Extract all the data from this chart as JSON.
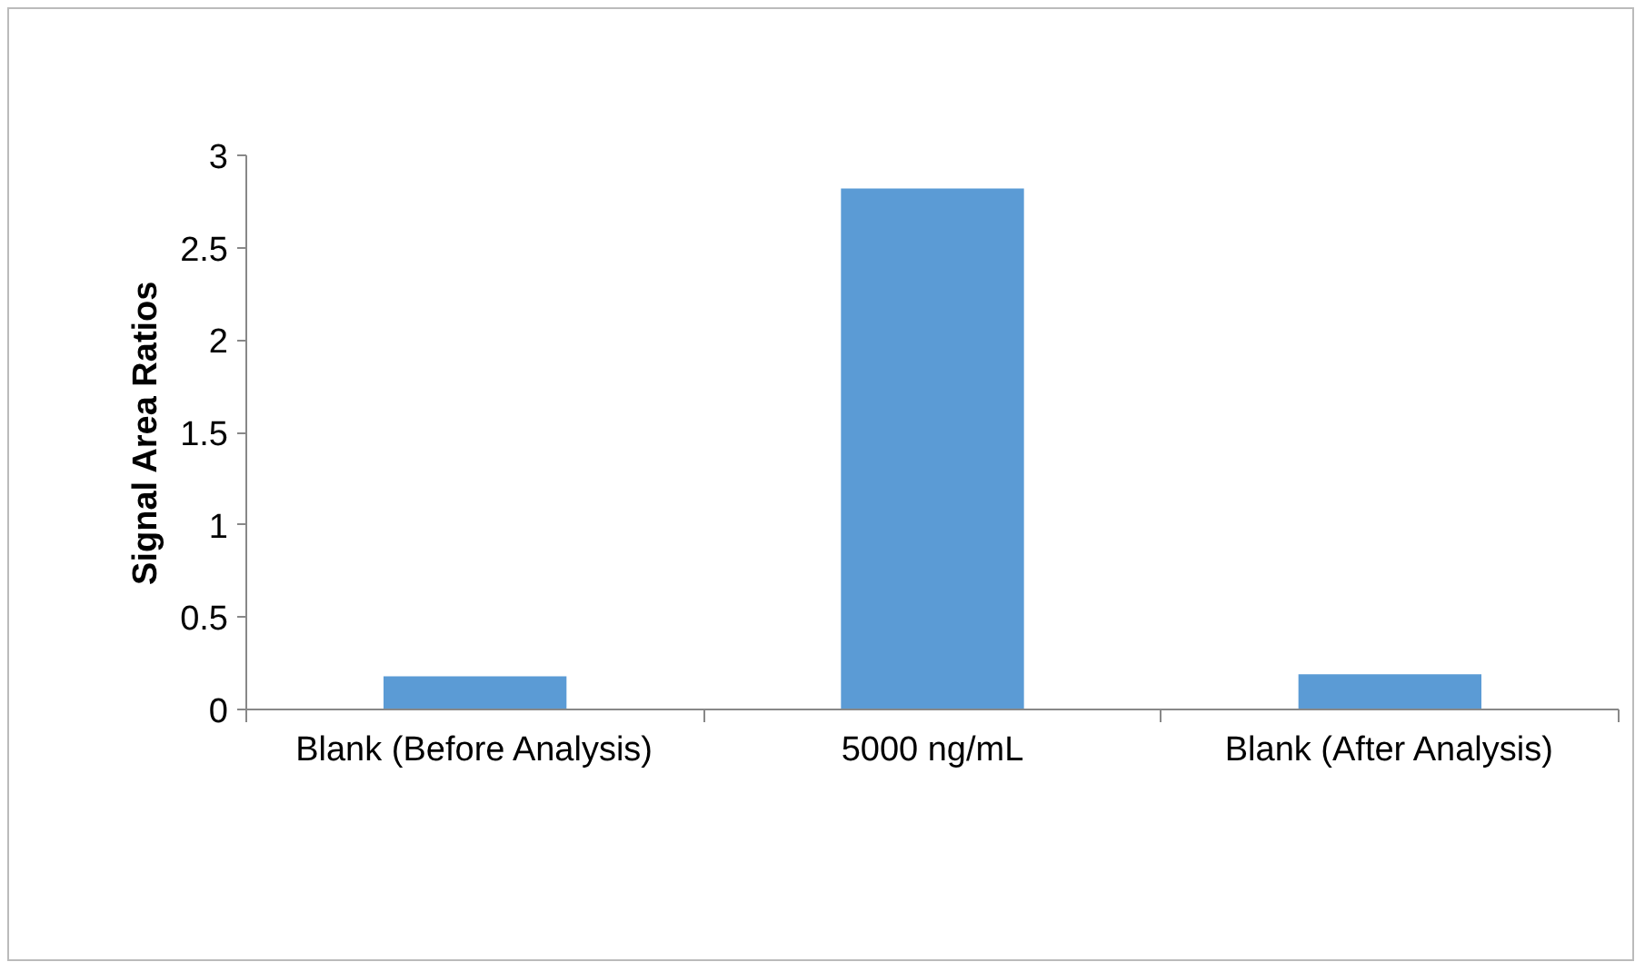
{
  "chart_data": {
    "type": "bar",
    "ylabel": "Signal Area Ratios",
    "categories": [
      "Blank (Before Analysis)",
      "5000 ng/mL",
      "Blank (After Analysis)"
    ],
    "values": [
      0.18,
      2.82,
      0.19
    ],
    "color": "#5b9bd5",
    "ylim": [
      0,
      3
    ],
    "yticks": [
      0,
      0.5,
      1,
      1.5,
      2,
      2.5,
      3
    ],
    "grid": false
  }
}
